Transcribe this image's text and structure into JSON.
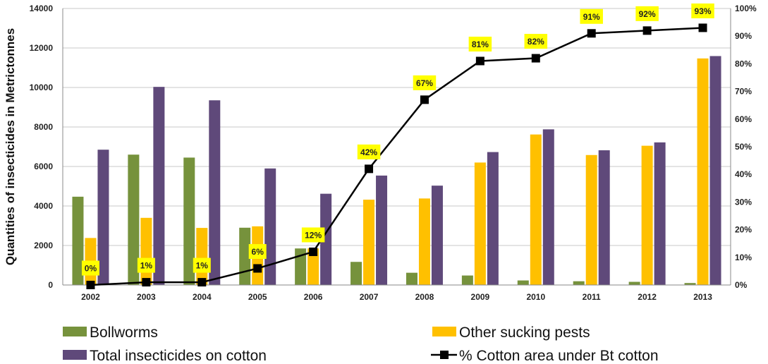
{
  "chart_data": {
    "type": "bar",
    "categories": [
      "2002",
      "2003",
      "2004",
      "2005",
      "2006",
      "2007",
      "2008",
      "2009",
      "2010",
      "2011",
      "2012",
      "2013"
    ],
    "series": [
      {
        "name": "Bollworms",
        "type": "bar",
        "axis": "left",
        "color": "#76923c",
        "values": [
          4470,
          6600,
          6450,
          2900,
          1850,
          1170,
          620,
          480,
          230,
          190,
          160,
          100
        ]
      },
      {
        "name": "Other sucking pests",
        "type": "bar",
        "axis": "left",
        "color": "#ffc000",
        "values": [
          2380,
          3400,
          2890,
          2970,
          1850,
          4320,
          4380,
          6200,
          7620,
          6580,
          7050,
          11470
        ]
      },
      {
        "name": "Total insecticides on cotton",
        "type": "bar",
        "axis": "left",
        "color": "#5f497a",
        "values": [
          6850,
          10030,
          9350,
          5900,
          4620,
          5540,
          5030,
          6730,
          7880,
          6820,
          7220,
          11590
        ]
      },
      {
        "name": "% Cotton area under Bt cotton",
        "type": "line",
        "axis": "right",
        "color": "#000000",
        "values": [
          0,
          1,
          1,
          6,
          12,
          42,
          67,
          81,
          82,
          91,
          92,
          93
        ],
        "labels": [
          "0%",
          "1%",
          "1%",
          "6%",
          "12%",
          "42%",
          "67%",
          "81%",
          "82%",
          "91%",
          "92%",
          "93%"
        ]
      }
    ],
    "ylabel": "Quantities of insecticides in Metrictonnes",
    "xlabel": "",
    "ylim": [
      0,
      14000
    ],
    "yticks": [
      "0",
      "2000",
      "4000",
      "6000",
      "8000",
      "10000",
      "12000",
      "14000"
    ],
    "y2lim": [
      0,
      100
    ],
    "y2ticks": [
      "0%",
      "10%",
      "20%",
      "30%",
      "40%",
      "50%",
      "60%",
      "70%",
      "80%",
      "90%",
      "100%"
    ],
    "data_label_bg": "#ffff00",
    "grid": true,
    "legend_position": "bottom"
  }
}
